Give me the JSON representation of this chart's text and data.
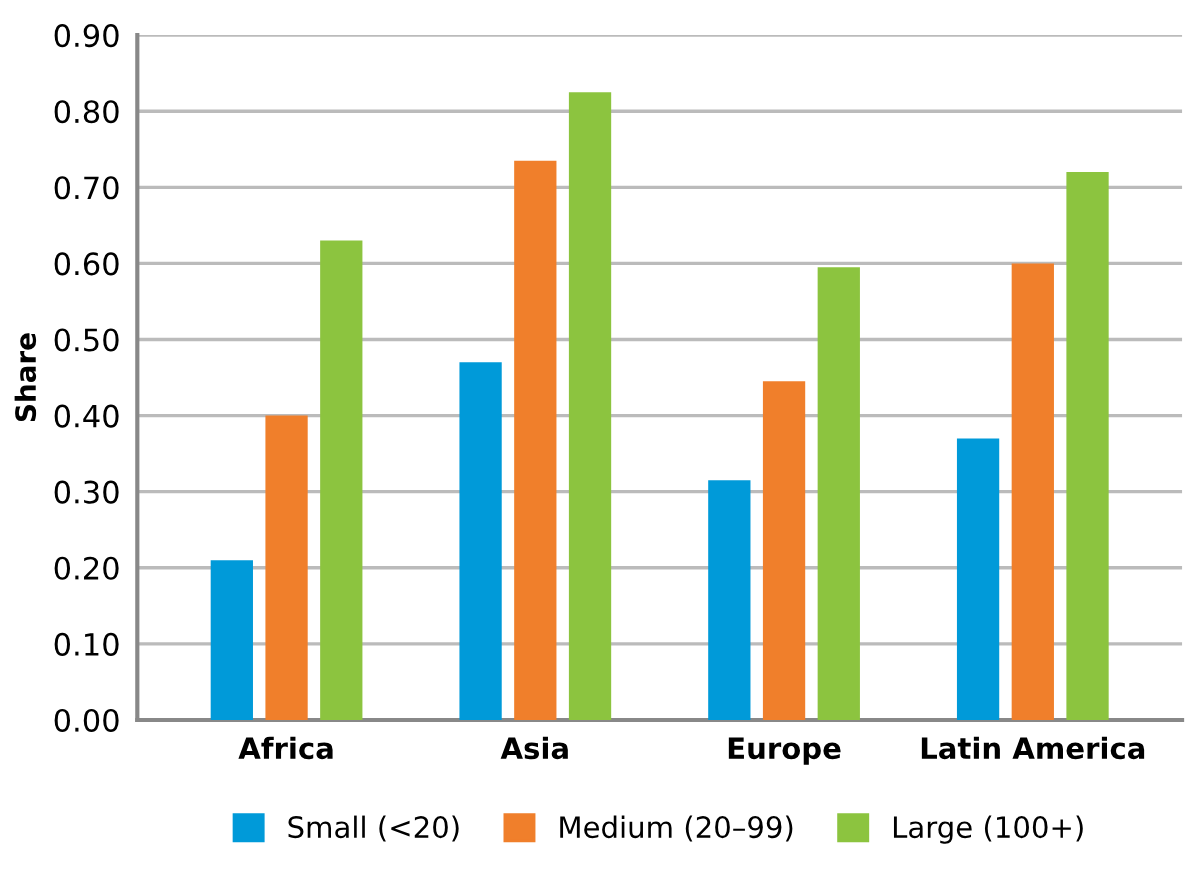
{
  "chart_data": {
    "type": "bar",
    "ylabel": "Share",
    "categories": [
      "Africa",
      "Asia",
      "Europe",
      "Latin America"
    ],
    "series": [
      {
        "name": "Small (<20)",
        "color": "#009ad9",
        "values": [
          0.21,
          0.47,
          0.315,
          0.37
        ]
      },
      {
        "name": "Medium (20–99)",
        "color": "#f07f2b",
        "values": [
          0.4,
          0.735,
          0.445,
          0.6
        ]
      },
      {
        "name": "Large (100+)",
        "color": "#8cc43f",
        "values": [
          0.63,
          0.825,
          0.595,
          0.72
        ]
      }
    ],
    "ylim": [
      0,
      0.9
    ],
    "yticks": [
      {
        "value": 0,
        "label": "0.00"
      },
      {
        "value": 0.1,
        "label": "0.10"
      },
      {
        "value": 0.2,
        "label": "0.20"
      },
      {
        "value": 0.3,
        "label": "0.30"
      },
      {
        "value": 0.4,
        "label": "0.40"
      },
      {
        "value": 0.5,
        "label": "0.50"
      },
      {
        "value": 0.6,
        "label": "0.60"
      },
      {
        "value": 0.7,
        "label": "0.70"
      },
      {
        "value": 0.8,
        "label": "0.80"
      },
      {
        "value": 0.9,
        "label": "0.90"
      }
    ],
    "grid": "y",
    "legend": "bottom"
  }
}
